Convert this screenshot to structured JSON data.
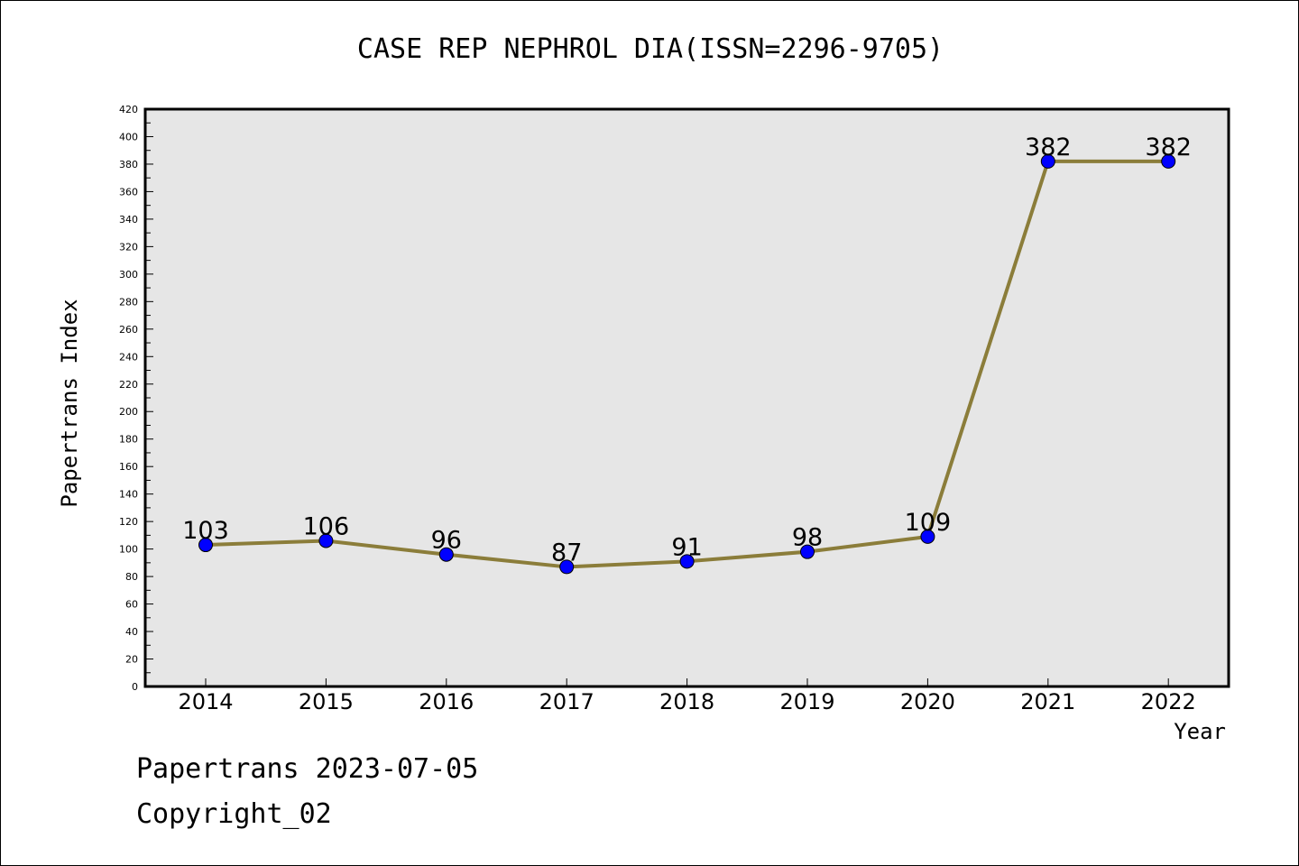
{
  "chart_data": {
    "type": "line",
    "title": "CASE REP NEPHROL DIA(ISSN=2296-9705)",
    "xlabel": "Year",
    "ylabel": "Papertrans Index",
    "categories": [
      "2014",
      "2015",
      "2016",
      "2017",
      "2018",
      "2019",
      "2020",
      "2021",
      "2022"
    ],
    "series": [
      {
        "values": [
          103,
          106,
          96,
          87,
          91,
          98,
          109,
          382,
          382
        ]
      }
    ],
    "ylim": [
      0,
      420
    ],
    "ytick_step": 20,
    "ytick_labels": [
      "0",
      "20",
      "40",
      "60",
      "80",
      "100",
      "120",
      "140",
      "160",
      "180",
      "200",
      "220",
      "240",
      "260",
      "280",
      "300",
      "320",
      "340",
      "360",
      "380",
      "400",
      "420"
    ],
    "grid": false,
    "legend": "none",
    "plot_background": "#e6e6e6",
    "line_color": "#8b7d3a",
    "marker_color": "#0000ff"
  },
  "footer": {
    "date": "Papertrans 2023-07-05",
    "copyright": "Copyright_02"
  }
}
